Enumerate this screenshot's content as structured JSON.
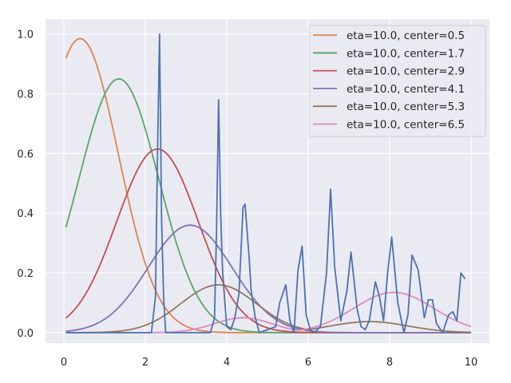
{
  "chart_data": {
    "type": "line",
    "title": "",
    "xlabel": "",
    "ylabel": "",
    "xlim": [
      -0.45,
      10.45
    ],
    "ylim": [
      -0.035,
      1.05
    ],
    "x_ticks": [
      0,
      2,
      4,
      6,
      8,
      10
    ],
    "y_ticks": [
      0.0,
      0.2,
      0.4,
      0.6,
      0.8,
      1.0
    ],
    "x_tick_labels": [
      "0",
      "2",
      "4",
      "6",
      "8",
      "10"
    ],
    "y_tick_labels": [
      "0.0",
      "0.2",
      "0.4",
      "0.6",
      "0.8",
      "1.0"
    ],
    "grid": true,
    "background": "#eaeaf2",
    "legend_position": "top-right",
    "spiky_series": {
      "color": "#4c72b0",
      "x": [
        0.05,
        2.15,
        2.25,
        2.3,
        2.35,
        2.4,
        2.45,
        2.5,
        2.6,
        3.6,
        3.7,
        3.75,
        3.8,
        3.85,
        3.9,
        4.0,
        4.1,
        4.2,
        4.3,
        4.4,
        4.45,
        4.55,
        4.6,
        4.7,
        4.8,
        5.2,
        5.3,
        5.45,
        5.55,
        5.65,
        5.75,
        5.85,
        5.95,
        6.05,
        6.15,
        6.3,
        6.45,
        6.55,
        6.65,
        6.8,
        6.95,
        7.05,
        7.2,
        7.3,
        7.4,
        7.5,
        7.65,
        7.75,
        7.85,
        7.95,
        8.05,
        8.2,
        8.35,
        8.45,
        8.55,
        8.7,
        8.85,
        8.95,
        9.05,
        9.15,
        9.3,
        9.45,
        9.55,
        9.65,
        9.75,
        9.85
      ],
      "y": [
        0.0,
        0.0,
        0.12,
        0.6,
        1.0,
        0.38,
        0.12,
        0.0,
        0.0,
        0.0,
        0.05,
        0.35,
        0.78,
        0.4,
        0.2,
        0.02,
        0.01,
        0.05,
        0.13,
        0.42,
        0.43,
        0.25,
        0.14,
        0.05,
        0.0,
        0.02,
        0.1,
        0.16,
        0.04,
        0.0,
        0.21,
        0.29,
        0.06,
        0.01,
        0.0,
        0.02,
        0.2,
        0.48,
        0.22,
        0.04,
        0.14,
        0.27,
        0.08,
        0.02,
        0.01,
        0.04,
        0.17,
        0.12,
        0.04,
        0.2,
        0.32,
        0.1,
        0.0,
        0.06,
        0.26,
        0.21,
        0.05,
        0.11,
        0.11,
        0.03,
        0.0,
        0.06,
        0.07,
        0.04,
        0.2,
        0.18
      ]
    },
    "series": [
      {
        "name": "eta=10.0, center=0.5",
        "color": "#dd8452",
        "amplitude": 0.985,
        "peak_x": 0.4,
        "sigma": 0.94
      },
      {
        "name": "eta=10.0, center=1.7",
        "color": "#55a868",
        "amplitude": 0.85,
        "peak_x": 1.35,
        "sigma": 0.98
      },
      {
        "name": "eta=10.0, center=2.9",
        "color": "#c44e52",
        "amplitude": 0.615,
        "peak_x": 2.3,
        "sigma": 1.0
      },
      {
        "name": "eta=10.0, center=4.1",
        "color": "#8172b3",
        "amplitude": 0.36,
        "peak_x": 3.1,
        "sigma": 1.03
      },
      {
        "name": "eta=10.0, center=5.3",
        "color": "#937860",
        "amplitude": 0.16,
        "peak_x": 3.8,
        "sigma": 0.93,
        "tail": {
          "amplitude": 0.037,
          "peak_x": 7.5,
          "sigma": 0.95
        }
      },
      {
        "name": "eta=10.0, center=6.5",
        "color": "#da8bc3",
        "amplitude": 0.135,
        "peak_x": 8.1,
        "sigma": 0.98,
        "tail": {
          "amplitude": 0.05,
          "peak_x": 4.4,
          "sigma": 0.7
        }
      }
    ]
  }
}
